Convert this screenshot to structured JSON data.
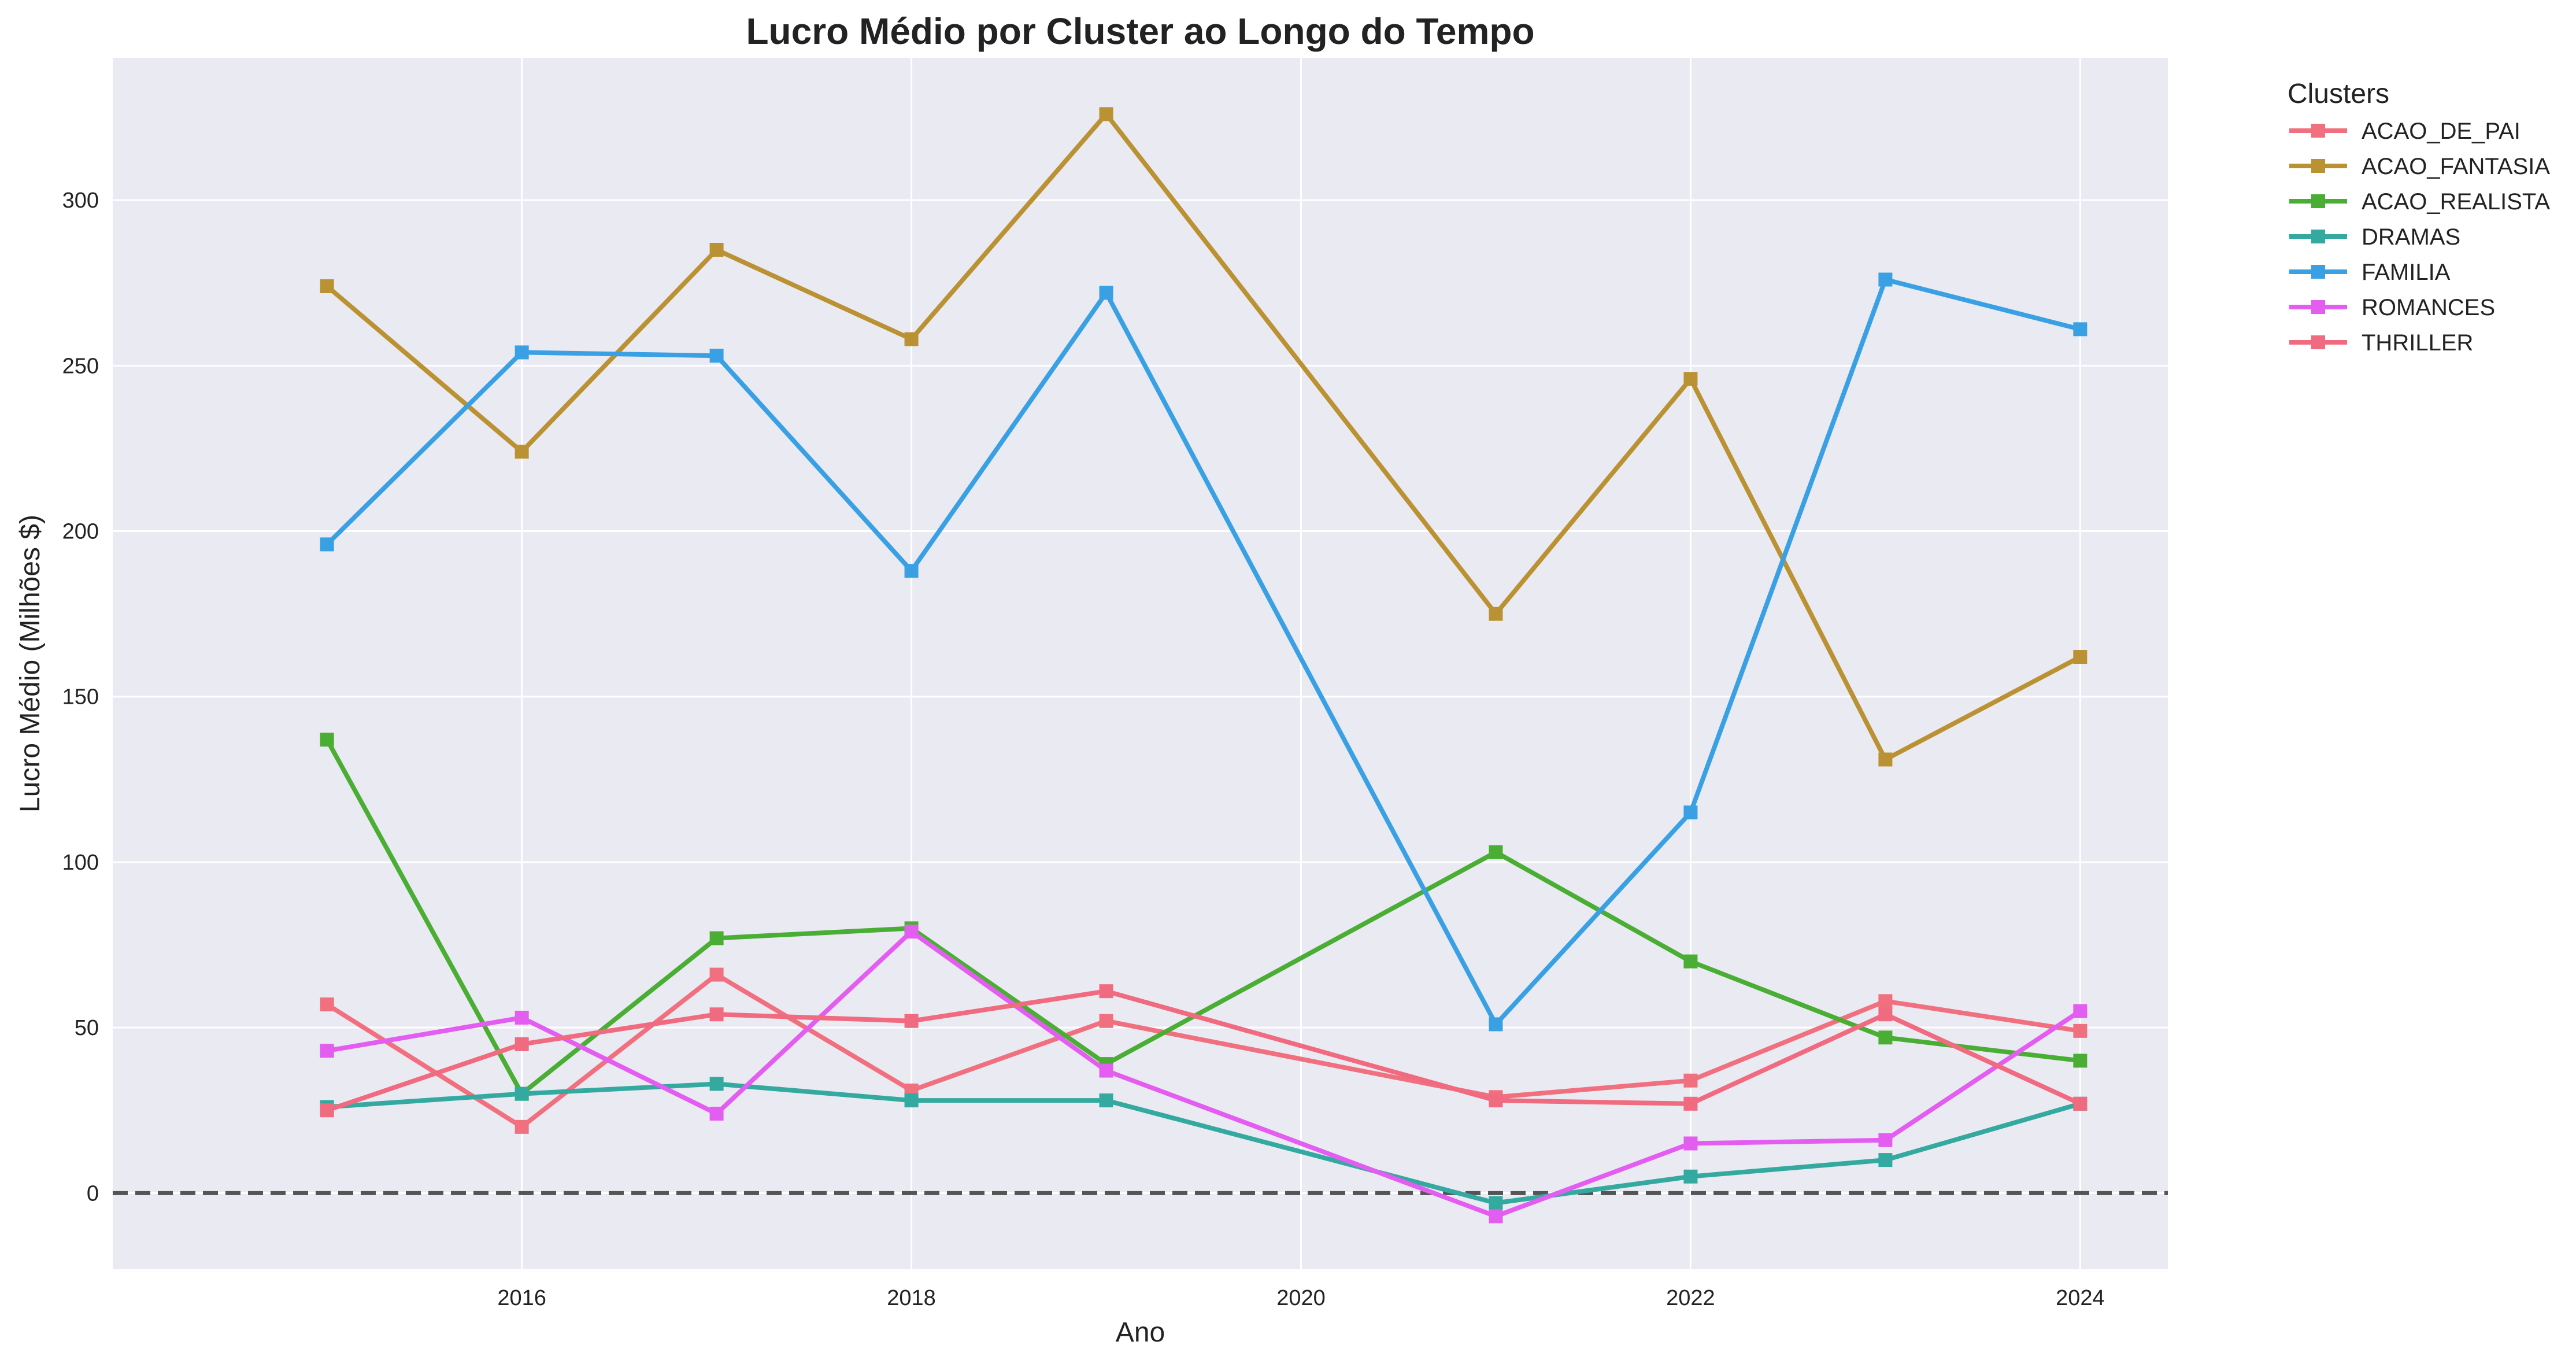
{
  "chart_data": {
    "type": "line",
    "title": "Lucro Médio por Cluster ao Longo do Tempo",
    "xlabel": "Ano",
    "ylabel": "Lucro Médio (Milhões $)",
    "x": [
      2015,
      2016,
      2017,
      2018,
      2019,
      2021,
      2022,
      2023,
      2024
    ],
    "xlim": [
      2013.9,
      2024.45
    ],
    "ylim": [
      -23,
      343
    ],
    "xticks": [
      2016,
      2018,
      2020,
      2022,
      2024
    ],
    "yticks": [
      0,
      50,
      100,
      150,
      200,
      250,
      300
    ],
    "grid": true,
    "reference_line": {
      "y": 0,
      "style": "dashed",
      "color": "#555555"
    },
    "legend": {
      "title": "Clusters",
      "placement": "outside-top-right"
    },
    "background_color": "#eaeaf2",
    "series": [
      {
        "name": "ACAO_DE_PAI",
        "color": "#f0707f",
        "values": [
          57,
          20,
          66,
          31,
          52,
          29,
          34,
          58,
          49
        ]
      },
      {
        "name": "ACAO_FANTASIA",
        "color": "#bb9233",
        "values": [
          274,
          224,
          285,
          258,
          326,
          175,
          246,
          131,
          162
        ]
      },
      {
        "name": "ACAO_REALISTA",
        "color": "#4aae35",
        "values": [
          137,
          30,
          77,
          80,
          39,
          103,
          70,
          47,
          40
        ]
      },
      {
        "name": "DRAMAS",
        "color": "#33a9a0",
        "values": [
          26,
          30,
          33,
          28,
          28,
          -3,
          5,
          10,
          27
        ]
      },
      {
        "name": "FAMILIA",
        "color": "#3aa0e4",
        "values": [
          196,
          254,
          253,
          188,
          272,
          51,
          115,
          276,
          261
        ]
      },
      {
        "name": "ROMANCES",
        "color": "#e35df0",
        "values": [
          43,
          53,
          24,
          79,
          37,
          -7,
          15,
          16,
          55
        ]
      },
      {
        "name": "THRILLER",
        "color": "#f06a80",
        "values": [
          25,
          45,
          54,
          52,
          61,
          28,
          27,
          54,
          27
        ]
      }
    ]
  }
}
